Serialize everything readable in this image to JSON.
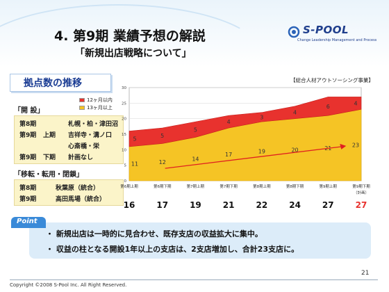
{
  "header": {
    "title": "4. 第9期 業績予想の解説",
    "subtitle": "「新規出店戦略について」",
    "logo_text": "S-POOL",
    "logo_tagline": "Change Leadership Management and Process"
  },
  "section": {
    "title": "拠点数の推移",
    "business_tag": "【総合人材アウトソーシング事業】"
  },
  "openings": {
    "heading": "「開 設」",
    "rows": [
      {
        "period": "第8期",
        "half": "",
        "stores": "札幌・柏・津田沼"
      },
      {
        "period": "第9期",
        "half": "上期",
        "stores": "吉祥寺・溝ノ口"
      },
      {
        "period": "",
        "half": "",
        "stores": "心斎橋・栄"
      },
      {
        "period": "第9期",
        "half": "下期",
        "stores": "計画なし"
      }
    ]
  },
  "relocations": {
    "heading": "「移転・転用・閉鎖」",
    "rows": [
      {
        "period": "第8期",
        "stores": "秋葉原（統合）"
      },
      {
        "period": "第9期",
        "stores": "高田馬場（統合）"
      }
    ]
  },
  "chart_data": {
    "type": "area",
    "x": [
      "第6期上期",
      "第6期下期",
      "第7期上期",
      "第7期下期",
      "第8期上期",
      "第8期下期",
      "第9期上期",
      "第9期下期"
    ],
    "x_note": "（計画）",
    "ylim": [
      0,
      30
    ],
    "yticks": [
      0,
      5,
      10,
      15,
      20,
      25,
      30
    ],
    "series": [
      {
        "name": "13ヶ月以上",
        "values": [
          11,
          12,
          14,
          17,
          19,
          20,
          21,
          23
        ],
        "color": "#f5c425"
      },
      {
        "name": "12ヶ月以内",
        "values": [
          5,
          5,
          5,
          4,
          3,
          4,
          6,
          4
        ],
        "color": "#e8322e"
      }
    ],
    "totals": [
      16,
      17,
      19,
      21,
      22,
      24,
      27,
      27
    ],
    "total_highlight_color": "#e8322e",
    "grid": true,
    "legend": "top-left"
  },
  "point": {
    "label": "Point",
    "bullets": [
      "・ 新規出店は一時的に見合わせ、既存支店の収益拡大に集中。",
      "・ 収益の柱となる開設1年以上の支店は、2支店増加し、合計23支店に。"
    ]
  },
  "footer": {
    "page": "21",
    "copyright": "Copyright ©2008 S-Pool Inc. All Right Reserved."
  }
}
